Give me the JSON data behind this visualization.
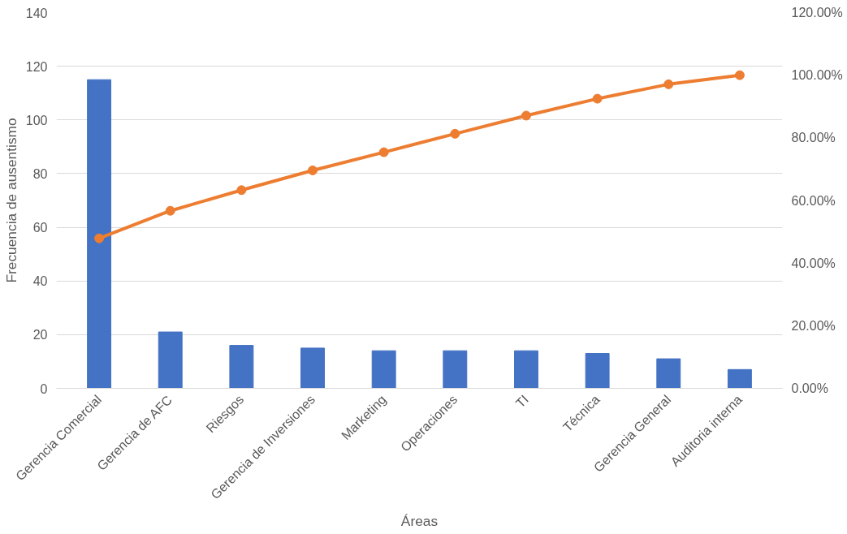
{
  "chart_data": {
    "type": "bar",
    "xlabel": "Áreas",
    "ylabel": "Frecuencia de ausentismo",
    "categories": [
      "Gerencia Comercial",
      "Gerencia de AFC",
      "Riesgos",
      "Gerencia de Inversiones",
      "Marketing",
      "Operaciones",
      "TI",
      "Técnica",
      "Gerencia General",
      "Auditoria interna"
    ],
    "series": [
      {
        "color": "#4472c4",
        "values": [
          115,
          21,
          16,
          15,
          14,
          14,
          14,
          13,
          11,
          7
        ]
      },
      {
        "type": "line",
        "axis": "y2",
        "color": "#ed7d31",
        "marker": "circle",
        "line_style": "solid",
        "values": [
          47.9,
          56.7,
          63.3,
          69.6,
          75.4,
          81.3,
          87.1,
          92.5,
          97.1,
          100
        ]
      }
    ],
    "ylim": [
      0,
      140
    ],
    "yticks": [
      0,
      20,
      40,
      60,
      80,
      100,
      120,
      140
    ],
    "y2lim": [
      0,
      120
    ],
    "y2ticks": [
      {
        "value": 0,
        "label": "0.00%"
      },
      {
        "value": 20,
        "label": "20.00%"
      },
      {
        "value": 40,
        "label": "40.00%"
      },
      {
        "value": 60,
        "label": "60.00%"
      },
      {
        "value": 80,
        "label": "80.00%"
      },
      {
        "value": 100,
        "label": "100.00%"
      },
      {
        "value": 120,
        "label": "120.00%"
      }
    ],
    "grid": "y"
  }
}
